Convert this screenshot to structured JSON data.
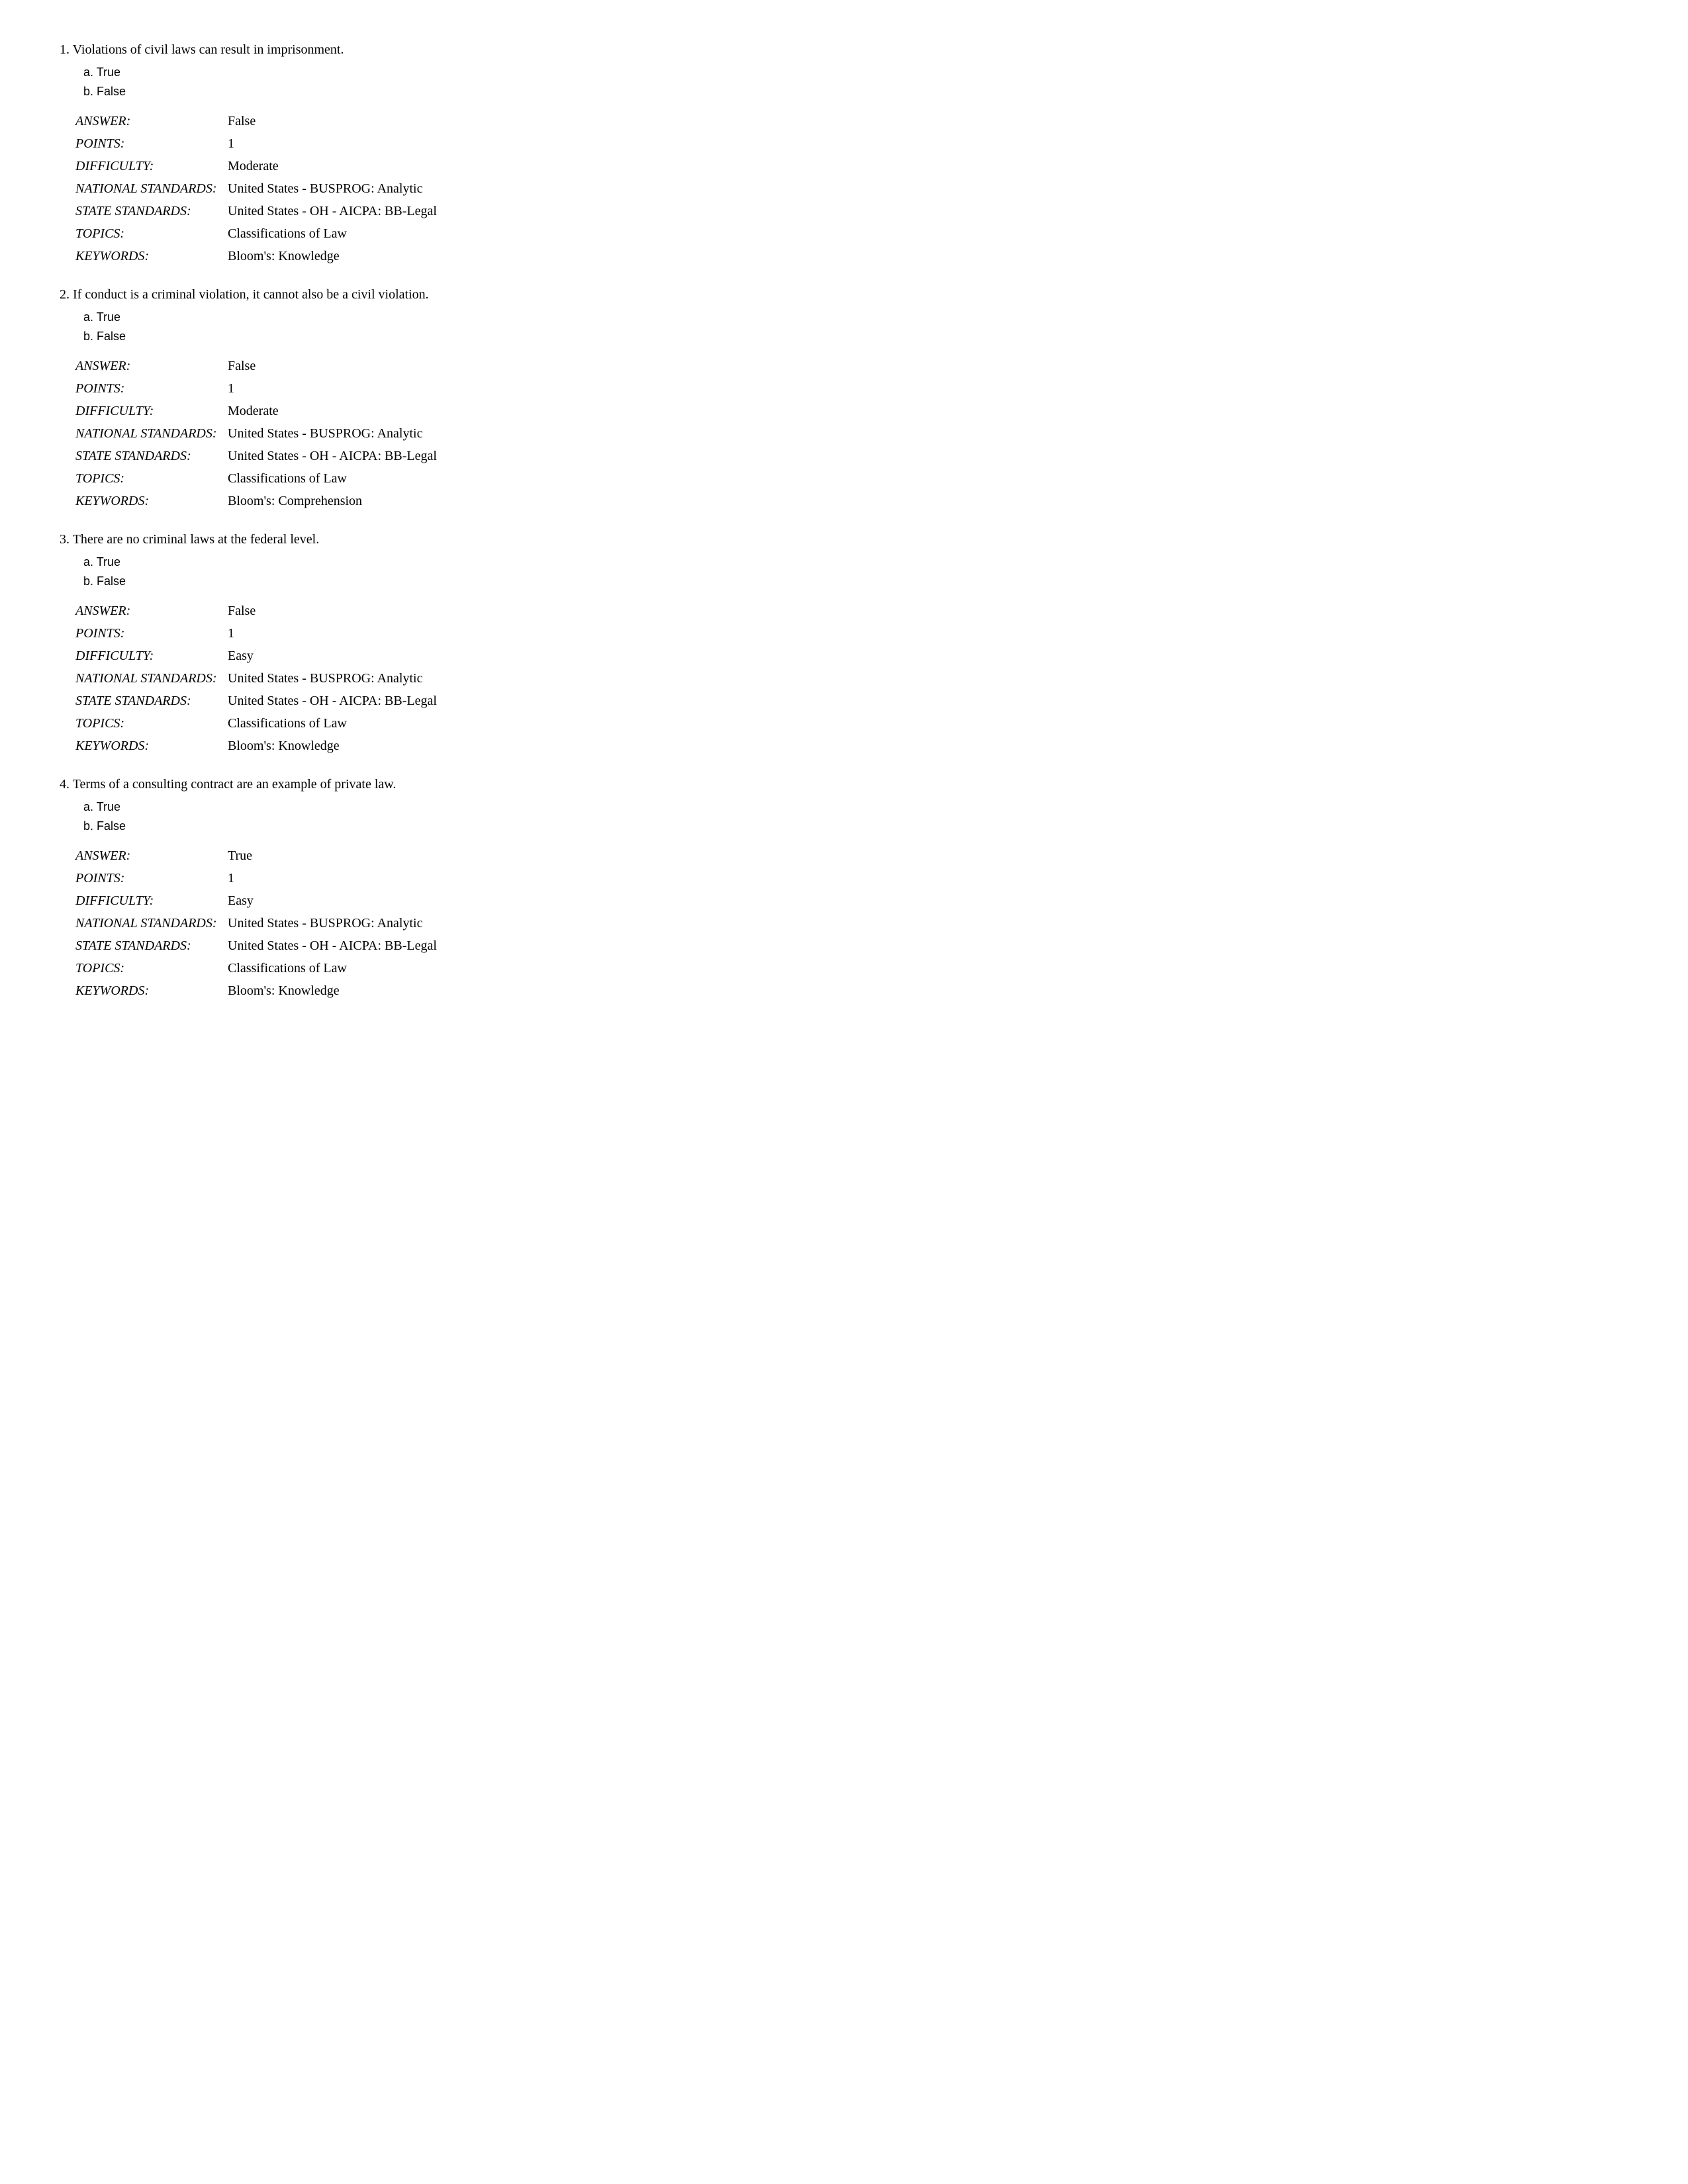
{
  "options_labels": {
    "a": "a.",
    "b": "b."
  },
  "option_values": {
    "true": "True",
    "false": "False"
  },
  "meta_labels": {
    "answer": "ANSWER:",
    "points": "POINTS:",
    "difficulty": "DIFFICULTY:",
    "national_standards": "NATIONAL STANDARDS:",
    "state_standards": "STATE STANDARDS:",
    "topics": "TOPICS:",
    "keywords": "KEYWORDS:"
  },
  "questions": [
    {
      "number": "1.",
      "text": "Violations of civil laws can result in imprisonment.",
      "answer": "False",
      "points": "1",
      "difficulty": "Moderate",
      "national_standards": "United States - BUSPROG: Analytic",
      "state_standards": "United States - OH - AICPA: BB-Legal",
      "topics": "Classifications of Law",
      "keywords": "Bloom's: Knowledge"
    },
    {
      "number": "2.",
      "text": "If conduct is a criminal violation, it cannot also be a civil violation.",
      "answer": "False",
      "points": "1",
      "difficulty": "Moderate",
      "national_standards": "United States - BUSPROG: Analytic",
      "state_standards": "United States - OH - AICPA: BB-Legal",
      "topics": "Classifications of Law",
      "keywords": "Bloom's: Comprehension"
    },
    {
      "number": "3.",
      "text": "There are no criminal laws at the federal level.",
      "answer": "False",
      "points": "1",
      "difficulty": "Easy",
      "national_standards": "United States - BUSPROG: Analytic",
      "state_standards": "United States - OH - AICPA: BB-Legal",
      "topics": "Classifications of Law",
      "keywords": "Bloom's: Knowledge"
    },
    {
      "number": "4.",
      "text": "Terms of a consulting contract are an example of private law.",
      "answer": "True",
      "points": "1",
      "difficulty": "Easy",
      "national_standards": "United States - BUSPROG: Analytic",
      "state_standards": "United States - OH - AICPA: BB-Legal",
      "topics": "Classifications of Law",
      "keywords": "Bloom's: Knowledge"
    }
  ]
}
